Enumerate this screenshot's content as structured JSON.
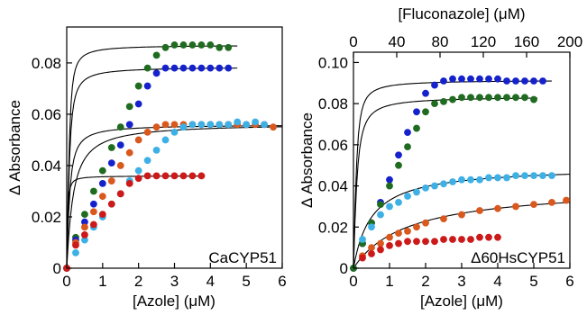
{
  "colors": {
    "green": "#1f6b1f",
    "blue": "#1522cc",
    "orange": "#d9581e",
    "lightblue": "#3db0e6",
    "red": "#cc1a1a",
    "fit": "#000000"
  },
  "chart_data": [
    {
      "type": "scatter",
      "panel_label": "CaCYP51",
      "xlabel": "[Azole] (μM)",
      "ylabel": "Δ Absorbance",
      "xlim": [
        0,
        6
      ],
      "ylim": [
        0,
        0.094
      ],
      "xticks": [
        0,
        1,
        2,
        3,
        4,
        5,
        6
      ],
      "xtick_labels": [
        "0",
        "1",
        "2",
        "3",
        "4",
        "5",
        "6"
      ],
      "yticks": [
        0,
        0.02,
        0.04,
        0.06,
        0.08
      ],
      "ytick_labels": [
        "0",
        "0.02",
        "0.04",
        "0.06",
        "0.08"
      ],
      "grid": false,
      "series": [
        {
          "color": "green",
          "fit": {
            "type": "tight",
            "E": 0.087,
            "Kd": 0.02,
            "x_end": 4.75
          },
          "x": [
            0,
            0.25,
            0.5,
            0.75,
            1.0,
            1.25,
            1.5,
            1.75,
            2.0,
            2.25,
            2.5,
            2.75,
            3.0,
            3.25,
            3.5,
            3.75,
            4.0,
            4.25,
            4.5
          ],
          "y": [
            0,
            0.012,
            0.021,
            0.03,
            0.038,
            0.047,
            0.055,
            0.063,
            0.071,
            0.078,
            0.083,
            0.086,
            0.087,
            0.087,
            0.087,
            0.087,
            0.087,
            0.086,
            0.086
          ]
        },
        {
          "color": "blue",
          "fit": {
            "type": "tight",
            "E": 0.0785,
            "Kd": 0.03,
            "x_end": 4.75
          },
          "x": [
            0,
            0.25,
            0.5,
            0.75,
            1.0,
            1.25,
            1.5,
            1.75,
            2.0,
            2.25,
            2.5,
            2.75,
            3.0,
            3.25,
            3.5,
            3.75,
            4.0,
            4.25,
            4.5
          ],
          "y": [
            0,
            0.011,
            0.018,
            0.025,
            0.033,
            0.041,
            0.048,
            0.056,
            0.064,
            0.071,
            0.076,
            0.078,
            0.078,
            0.078,
            0.078,
            0.078,
            0.078,
            0.078,
            0.078
          ]
        },
        {
          "color": "orange",
          "fit": {
            "type": "tight",
            "E": 0.056,
            "Kd": 0.05,
            "x_end": 6.0
          },
          "x": [
            0,
            0.25,
            0.5,
            0.75,
            1.0,
            1.25,
            1.5,
            1.75,
            2.0,
            2.25,
            2.5,
            2.75,
            3.0,
            3.25,
            3.5,
            3.75,
            4.0,
            4.25,
            4.5,
            4.75,
            5.0,
            5.25,
            5.5,
            5.75
          ],
          "y": [
            0,
            0.01,
            0.016,
            0.022,
            0.028,
            0.034,
            0.04,
            0.045,
            0.05,
            0.053,
            0.055,
            0.056,
            0.056,
            0.056,
            0.056,
            0.056,
            0.056,
            0.056,
            0.056,
            0.056,
            0.056,
            0.056,
            0.056,
            0.055
          ]
        },
        {
          "color": "lightblue",
          "fit": {
            "type": "tight",
            "E": 0.0565,
            "Kd": 0.15,
            "x_end": 6.0
          },
          "x": [
            0.25,
            0.5,
            0.75,
            1.0,
            1.25,
            1.5,
            1.75,
            2.0,
            2.25,
            2.5,
            2.75,
            3.0,
            3.25,
            3.5,
            3.75,
            4.0,
            4.25,
            4.5,
            4.75,
            5.0,
            5.25,
            5.5
          ],
          "y": [
            0.006,
            0.011,
            0.016,
            0.02,
            0.025,
            0.029,
            0.034,
            0.038,
            0.042,
            0.046,
            0.05,
            0.053,
            0.055,
            0.056,
            0.056,
            0.056,
            0.056,
            0.056,
            0.057,
            0.056,
            0.057,
            0.056
          ]
        },
        {
          "color": "red",
          "fit": {
            "type": "tight",
            "E": 0.036,
            "Kd": 0.01,
            "x_end": 3.85
          },
          "x": [
            0,
            0.25,
            0.5,
            0.75,
            1.0,
            1.25,
            1.5,
            1.75,
            2.0,
            2.25,
            2.5,
            2.75,
            3.0,
            3.25,
            3.5,
            3.75
          ],
          "y": [
            0,
            0.009,
            0.013,
            0.017,
            0.021,
            0.025,
            0.029,
            0.033,
            0.035,
            0.036,
            0.036,
            0.036,
            0.036,
            0.036,
            0.036,
            0.036
          ]
        }
      ]
    },
    {
      "type": "scatter",
      "panel_label": "Δ60HsCYP51",
      "xlabel": "[Azole] (μM)",
      "ylabel": "Δ Absorbance",
      "x2label": "[Fluconazole] (μM)",
      "xlim": [
        0,
        6
      ],
      "ylim": [
        0,
        0.105
      ],
      "x2lim": [
        0,
        200
      ],
      "xticks": [
        0,
        1,
        2,
        3,
        4,
        5,
        6
      ],
      "xtick_labels": [
        "0",
        "1",
        "2",
        "3",
        "4",
        "5",
        "6"
      ],
      "x2ticks": [
        0,
        40,
        80,
        120,
        160,
        200
      ],
      "x2tick_labels": [
        "0",
        "40",
        "80",
        "120",
        "160",
        "200"
      ],
      "yticks": [
        0,
        0.02,
        0.04,
        0.06,
        0.08,
        0.1
      ],
      "ytick_labels": [
        "0",
        "0.02",
        "0.04",
        "0.06",
        "0.08",
        "0.10"
      ],
      "grid": false,
      "series": [
        {
          "color": "blue",
          "fit": {
            "type": "tight",
            "E": 0.0915,
            "Kd": 0.03,
            "x_end": 5.5
          },
          "x": [
            0,
            0.25,
            0.5,
            0.75,
            1.0,
            1.25,
            1.5,
            1.75,
            2.0,
            2.25,
            2.5,
            2.75,
            3.0,
            3.25,
            3.5,
            3.75,
            4.0,
            4.25,
            4.5,
            4.75,
            5.0,
            5.25
          ],
          "y": [
            0,
            0.012,
            0.022,
            0.032,
            0.043,
            0.055,
            0.066,
            0.076,
            0.085,
            0.089,
            0.091,
            0.092,
            0.092,
            0.092,
            0.092,
            0.092,
            0.092,
            0.091,
            0.091,
            0.091,
            0.091,
            0.091
          ]
        },
        {
          "color": "green",
          "fit": {
            "type": "tight",
            "E": 0.0835,
            "Kd": 0.05,
            "x_end": 5.1
          },
          "x": [
            0,
            0.25,
            0.5,
            0.75,
            1.0,
            1.25,
            1.5,
            1.75,
            2.0,
            2.25,
            2.5,
            2.75,
            3.0,
            3.25,
            3.5,
            3.75,
            4.0,
            4.25,
            4.5,
            4.75,
            5.0
          ],
          "y": [
            0,
            0.012,
            0.022,
            0.031,
            0.04,
            0.05,
            0.059,
            0.068,
            0.076,
            0.08,
            0.081,
            0.082,
            0.083,
            0.083,
            0.083,
            0.083,
            0.083,
            0.083,
            0.083,
            0.083,
            0.082
          ]
        },
        {
          "color": "lightblue",
          "fit": {
            "type": "hyper",
            "Bmax": 0.0495,
            "K": 0.5,
            "x_end": 6.0
          },
          "x": [
            0.25,
            0.5,
            0.75,
            1.0,
            1.25,
            1.5,
            1.75,
            2.0,
            2.25,
            2.5,
            2.75,
            3.0,
            3.25,
            3.5,
            3.75,
            4.0,
            4.25,
            4.5,
            4.75,
            5.0,
            5.25,
            5.5
          ],
          "y": [
            0.014,
            0.02,
            0.026,
            0.03,
            0.032,
            0.035,
            0.037,
            0.039,
            0.04,
            0.041,
            0.042,
            0.043,
            0.043,
            0.043,
            0.044,
            0.044,
            0.044,
            0.045,
            0.045,
            0.045,
            0.045,
            0.045
          ]
        },
        {
          "color": "orange",
          "fit": {
            "type": "hyper",
            "Bmax": 0.04,
            "K": 1.5,
            "x_end": 6.0
          },
          "x": [
            0.25,
            0.5,
            0.75,
            1.0,
            1.25,
            1.5,
            1.75,
            2.0,
            2.5,
            3.0,
            3.5,
            4.0,
            4.5,
            5.0,
            5.5,
            5.9
          ],
          "y": [
            0.006,
            0.01,
            0.012,
            0.015,
            0.017,
            0.018,
            0.02,
            0.022,
            0.024,
            0.026,
            0.028,
            0.029,
            0.03,
            0.031,
            0.032,
            0.033
          ]
        },
        {
          "color": "red",
          "fit": null,
          "x": [
            0.25,
            0.5,
            0.75,
            1.0,
            1.25,
            1.5,
            1.75,
            2.0,
            2.25,
            2.5,
            2.75,
            3.0,
            3.25,
            3.5,
            3.75,
            4.0
          ],
          "y": [
            0.005,
            0.007,
            0.009,
            0.011,
            0.012,
            0.013,
            0.013,
            0.013,
            0.013,
            0.014,
            0.014,
            0.014,
            0.014,
            0.015,
            0.015,
            0.015
          ]
        }
      ]
    }
  ]
}
